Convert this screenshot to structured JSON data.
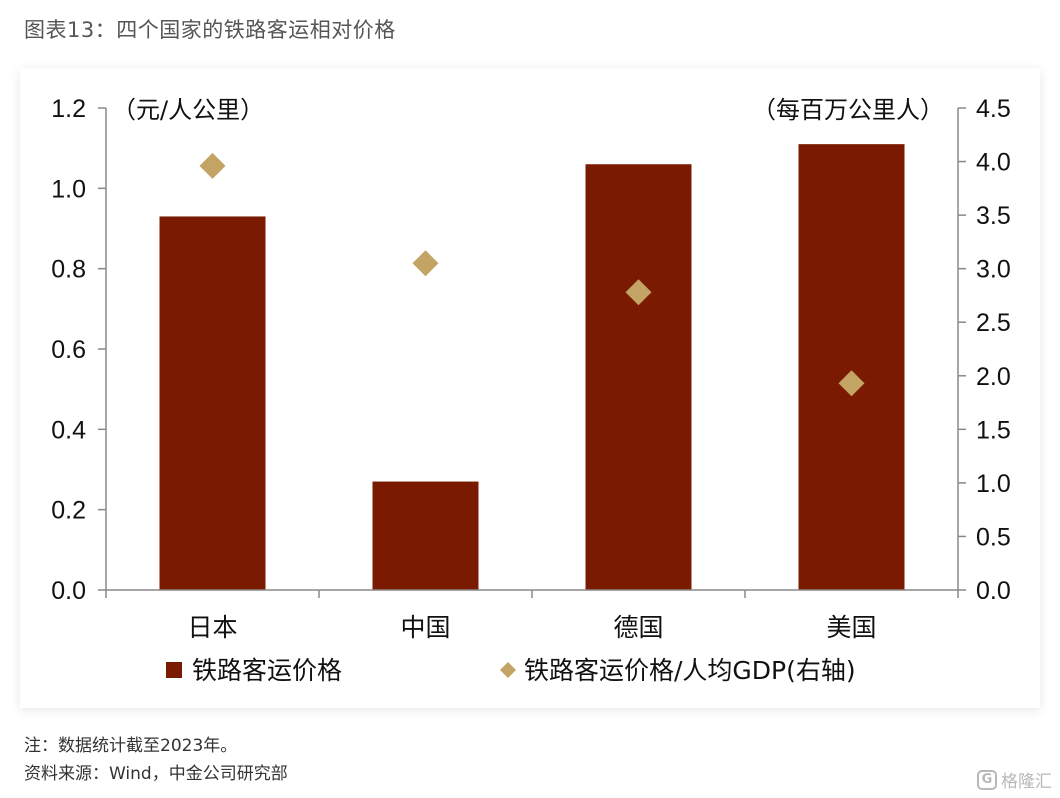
{
  "figure_title": "图表13：四个国家的铁路客运相对价格",
  "notes": {
    "note": "注：数据统计截至2023年。",
    "source": "资料来源：Wind，中金公司研究部"
  },
  "watermark": {
    "logo_glyph": "G",
    "text": "格隆汇"
  },
  "colors": {
    "bar": "#7a1a00",
    "diamond": "#c4a464",
    "axis": "#888888"
  },
  "chart_data": {
    "type": "bar",
    "categories": [
      "日本",
      "中国",
      "德国",
      "美国"
    ],
    "series": [
      {
        "name": "铁路客运价格",
        "kind": "bar",
        "axis": "left",
        "values": [
          0.93,
          0.27,
          1.06,
          1.11
        ]
      },
      {
        "name": "铁路客运价格/人均GDP(右轴)",
        "kind": "scatter",
        "axis": "right",
        "values": [
          3.96,
          3.05,
          2.78,
          1.93
        ]
      }
    ],
    "y_left": {
      "unit_label": "（元/人公里）",
      "ylim": [
        0,
        1.2
      ],
      "ticks": [
        "0.0",
        "0.2",
        "0.4",
        "0.6",
        "0.8",
        "1.0",
        "1.2"
      ]
    },
    "y_right": {
      "unit_label": "（每百万公里人）",
      "ylim": [
        0,
        4.5
      ],
      "ticks": [
        "0.0",
        "0.5",
        "1.0",
        "1.5",
        "2.0",
        "2.5",
        "3.0",
        "3.5",
        "4.0",
        "4.5"
      ]
    },
    "grid": false,
    "legend_position": "bottom"
  }
}
